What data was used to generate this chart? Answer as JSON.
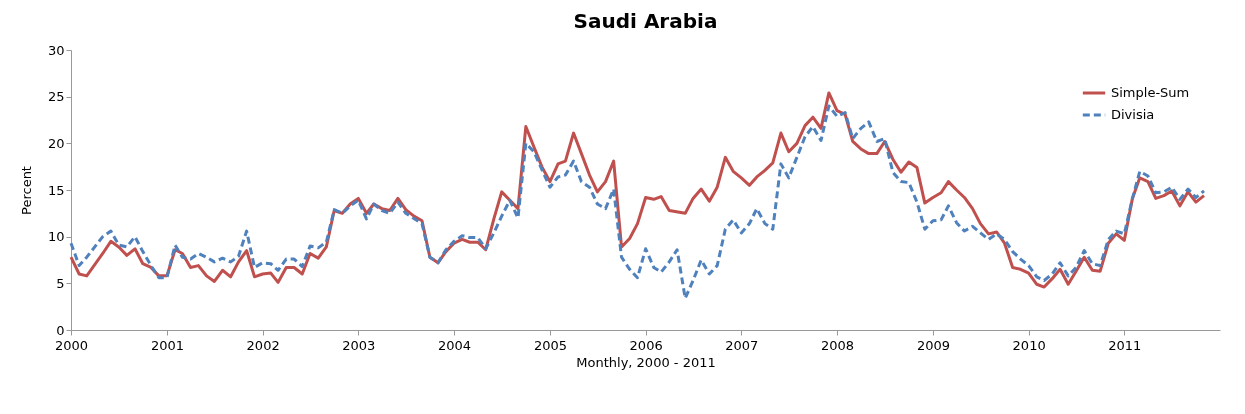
{
  "chart_data": {
    "type": "line",
    "title": "Saudi Arabia",
    "xlabel": "Monthly, 2000 - 2011",
    "ylabel": "Percent",
    "ylim": [
      0,
      30
    ],
    "yticks": [
      0,
      5,
      10,
      15,
      20,
      25,
      30
    ],
    "xlim": [
      "2000-01",
      "2012-01"
    ],
    "xticks": [
      {
        "value": "2000-01",
        "label": "2000"
      },
      {
        "value": "2001-01",
        "label": "2001"
      },
      {
        "value": "2002-01",
        "label": "2002"
      },
      {
        "value": "2003-01",
        "label": "2003"
      },
      {
        "value": "2004-01",
        "label": "2004"
      },
      {
        "value": "2005-01",
        "label": "2005"
      },
      {
        "value": "2006-01",
        "label": "2006"
      },
      {
        "value": "2007-01",
        "label": "2007"
      },
      {
        "value": "2008-01",
        "label": "2008"
      },
      {
        "value": "2009-01",
        "label": "2009"
      },
      {
        "value": "2010-01",
        "label": "2010"
      },
      {
        "value": "2011-01",
        "label": "2011"
      }
    ],
    "grid": false,
    "legend": "top right",
    "series": [
      {
        "name": "Simple-Sum",
        "color": "#c0504d",
        "line_style": "solid",
        "x": [
          "2000-01",
          "2000-02",
          "2000-03",
          "2000-05",
          "2000-06",
          "2000-07",
          "2000-08",
          "2000-09",
          "2000-10",
          "2000-11",
          "2000-12",
          "2001-01",
          "2001-02",
          "2001-03",
          "2001-04",
          "2001-05",
          "2001-06",
          "2001-07",
          "2001-08",
          "2001-09",
          "2001-10",
          "2001-11",
          "2001-12",
          "2002-01",
          "2002-02",
          "2002-03",
          "2002-04",
          "2002-05",
          "2002-06",
          "2002-07",
          "2002-08",
          "2002-09",
          "2002-10",
          "2002-11",
          "2002-12",
          "2003-01",
          "2003-02",
          "2003-03",
          "2003-04",
          "2003-05",
          "2003-06",
          "2003-07",
          "2003-08",
          "2003-09",
          "2003-10",
          "2003-11",
          "2003-12",
          "2004-01",
          "2004-02",
          "2004-03",
          "2004-04",
          "2004-05",
          "2004-06",
          "2004-07",
          "2004-08",
          "2004-09",
          "2004-10",
          "2004-11",
          "2004-12",
          "2005-01",
          "2005-02",
          "2005-03",
          "2005-04",
          "2005-05",
          "2005-06",
          "2005-07",
          "2005-08",
          "2005-09",
          "2005-10",
          "2005-11",
          "2005-12",
          "2006-01",
          "2006-02",
          "2006-03",
          "2006-04",
          "2006-06",
          "2006-07",
          "2006-08",
          "2006-09",
          "2006-10",
          "2006-11",
          "2006-12",
          "2007-01",
          "2007-02",
          "2007-03",
          "2007-04",
          "2007-05",
          "2007-06",
          "2007-07",
          "2007-08",
          "2007-09",
          "2007-10",
          "2007-11",
          "2007-12",
          "2008-01",
          "2008-02",
          "2008-03",
          "2008-04",
          "2008-05",
          "2008-06",
          "2008-07",
          "2008-08",
          "2008-09",
          "2008-10",
          "2008-11",
          "2008-12",
          "2009-01",
          "2009-02",
          "2009-03",
          "2009-04",
          "2009-05",
          "2009-06",
          "2009-07",
          "2009-08",
          "2009-09",
          "2009-10",
          "2009-11",
          "2009-12",
          "2010-01",
          "2010-02",
          "2010-03",
          "2010-04",
          "2010-05",
          "2010-06",
          "2010-07",
          "2010-08",
          "2010-09",
          "2010-10",
          "2010-11",
          "2010-12",
          "2011-01",
          "2011-02",
          "2011-03",
          "2011-04",
          "2011-05",
          "2011-06",
          "2011-07",
          "2011-08",
          "2011-09",
          "2011-10",
          "2011-11"
        ],
        "values": [
          7.8,
          6.0,
          5.8,
          8.2,
          9.5,
          8.9,
          8.0,
          8.7,
          7.1,
          6.7,
          5.8,
          5.8,
          8.6,
          8.2,
          6.7,
          6.9,
          5.8,
          5.2,
          6.4,
          5.7,
          7.3,
          8.5,
          5.7,
          6.0,
          6.1,
          5.1,
          6.7,
          6.7,
          6.0,
          8.2,
          7.7,
          8.9,
          12.8,
          12.5,
          13.5,
          14.1,
          12.5,
          13.5,
          13.0,
          12.8,
          14.1,
          12.9,
          12.2,
          11.7,
          7.8,
          7.2,
          8.4,
          9.3,
          9.7,
          9.4,
          9.4,
          8.6,
          11.9,
          14.8,
          13.9,
          13.0,
          21.8,
          19.6,
          17.5,
          15.9,
          17.8,
          18.1,
          21.1,
          18.9,
          16.6,
          14.8,
          15.9,
          18.1,
          8.9,
          9.8,
          11.4,
          14.2,
          14.0,
          14.3,
          12.8,
          12.5,
          14.1,
          15.1,
          13.8,
          15.3,
          18.5,
          17.0,
          16.3,
          15.5,
          16.4,
          17.1,
          17.9,
          21.1,
          19.1,
          20.0,
          21.9,
          22.8,
          21.6,
          25.4,
          23.5,
          23.1,
          20.2,
          19.4,
          18.9,
          18.9,
          20.2,
          18.3,
          16.9,
          18.0,
          17.4,
          13.6,
          14.2,
          14.7,
          15.9,
          15.0,
          14.2,
          13.0,
          11.4,
          10.3,
          10.5,
          9.3,
          6.7,
          6.5,
          6.1,
          4.9,
          4.6,
          5.5,
          6.5,
          4.9,
          6.3,
          7.8,
          6.4,
          6.3,
          9.3,
          10.3,
          9.6,
          14.1,
          16.3,
          15.9,
          14.1,
          14.4,
          14.9,
          13.3,
          14.8,
          13.7,
          14.4
        ]
      },
      {
        "name": "Divisia",
        "color": "#4f81bd",
        "line_style": "dashed",
        "x": [
          "2000-01",
          "2000-02",
          "2000-03",
          "2000-05",
          "2000-06",
          "2000-07",
          "2000-08",
          "2000-09",
          "2000-10",
          "2000-11",
          "2000-12",
          "2001-01",
          "2001-02",
          "2001-03",
          "2001-04",
          "2001-05",
          "2001-06",
          "2001-07",
          "2001-08",
          "2001-09",
          "2001-10",
          "2001-11",
          "2001-12",
          "2002-01",
          "2002-02",
          "2002-03",
          "2002-04",
          "2002-05",
          "2002-06",
          "2002-07",
          "2002-08",
          "2002-09",
          "2002-10",
          "2002-11",
          "2002-12",
          "2003-01",
          "2003-02",
          "2003-03",
          "2003-04",
          "2003-05",
          "2003-06",
          "2003-07",
          "2003-09",
          "2003-10",
          "2003-11",
          "2003-12",
          "2004-01",
          "2004-02",
          "2004-03",
          "2004-04",
          "2004-05",
          "2004-06",
          "2004-07",
          "2004-08",
          "2004-09",
          "2004-10",
          "2004-11",
          "2004-12",
          "2005-01",
          "2005-02",
          "2005-03",
          "2005-04",
          "2005-05",
          "2005-06",
          "2005-07",
          "2005-08",
          "2005-09",
          "2005-10",
          "2005-11",
          "2005-12",
          "2006-01",
          "2006-02",
          "2006-03",
          "2006-04",
          "2006-05",
          "2006-06",
          "2006-07",
          "2006-08",
          "2006-09",
          "2006-10",
          "2006-11",
          "2006-12",
          "2007-01",
          "2007-02",
          "2007-03",
          "2007-04",
          "2007-05",
          "2007-06",
          "2007-07",
          "2007-08",
          "2007-09",
          "2007-10",
          "2007-11",
          "2007-12",
          "2008-01",
          "2008-02",
          "2008-03",
          "2008-04",
          "2008-05",
          "2008-06",
          "2008-07",
          "2008-08",
          "2008-09",
          "2008-10",
          "2008-11",
          "2008-12",
          "2009-01",
          "2009-02",
          "2009-03",
          "2009-04",
          "2009-05",
          "2009-06",
          "2009-07",
          "2009-08",
          "2009-09",
          "2009-10",
          "2009-11",
          "2009-12",
          "2010-01",
          "2010-02",
          "2010-03",
          "2010-04",
          "2010-05",
          "2010-06",
          "2010-07",
          "2010-08",
          "2010-09",
          "2010-10",
          "2010-11",
          "2010-12",
          "2011-01",
          "2011-02",
          "2011-03",
          "2011-04",
          "2011-05",
          "2011-06",
          "2011-07",
          "2011-08",
          "2011-09",
          "2011-10",
          "2011-11"
        ],
        "values": [
          9.3,
          6.9,
          7.8,
          10.0,
          10.6,
          9.1,
          8.9,
          10.0,
          8.4,
          6.9,
          5.6,
          5.6,
          9.1,
          7.8,
          7.6,
          8.2,
          7.8,
          7.3,
          7.7,
          7.3,
          7.9,
          10.6,
          6.7,
          7.2,
          7.1,
          6.4,
          7.6,
          7.6,
          6.8,
          9.0,
          8.8,
          9.4,
          12.9,
          12.5,
          13.3,
          13.9,
          11.9,
          13.5,
          12.8,
          12.5,
          13.7,
          12.5,
          11.4,
          7.8,
          7.2,
          8.6,
          9.5,
          10.1,
          9.9,
          9.9,
          8.7,
          10.4,
          12.2,
          13.9,
          12.0,
          20.0,
          19.1,
          17.2,
          15.3,
          16.4,
          16.6,
          18.1,
          15.9,
          15.3,
          13.5,
          13.0,
          15.1,
          7.8,
          6.5,
          5.6,
          8.7,
          6.7,
          6.2,
          7.3,
          8.6,
          3.4,
          5.3,
          7.5,
          6.0,
          6.9,
          10.8,
          11.8,
          10.4,
          11.4,
          13.0,
          11.4,
          10.8,
          17.8,
          16.3,
          18.5,
          20.7,
          21.8,
          20.3,
          24.0,
          22.9,
          23.3,
          20.5,
          21.6,
          22.3,
          20.2,
          20.5,
          16.9,
          15.9,
          15.8,
          13.7,
          10.8,
          11.7,
          11.8,
          13.3,
          11.5,
          10.6,
          11.1,
          10.4,
          9.7,
          10.3,
          9.7,
          8.4,
          7.6,
          6.9,
          5.7,
          5.3,
          6.0,
          7.2,
          5.8,
          6.7,
          8.5,
          7.1,
          6.9,
          9.7,
          10.6,
          10.3,
          14.1,
          17.0,
          16.5,
          14.7,
          14.8,
          15.3,
          14.0,
          15.1,
          14.2,
          14.9
        ]
      }
    ]
  }
}
